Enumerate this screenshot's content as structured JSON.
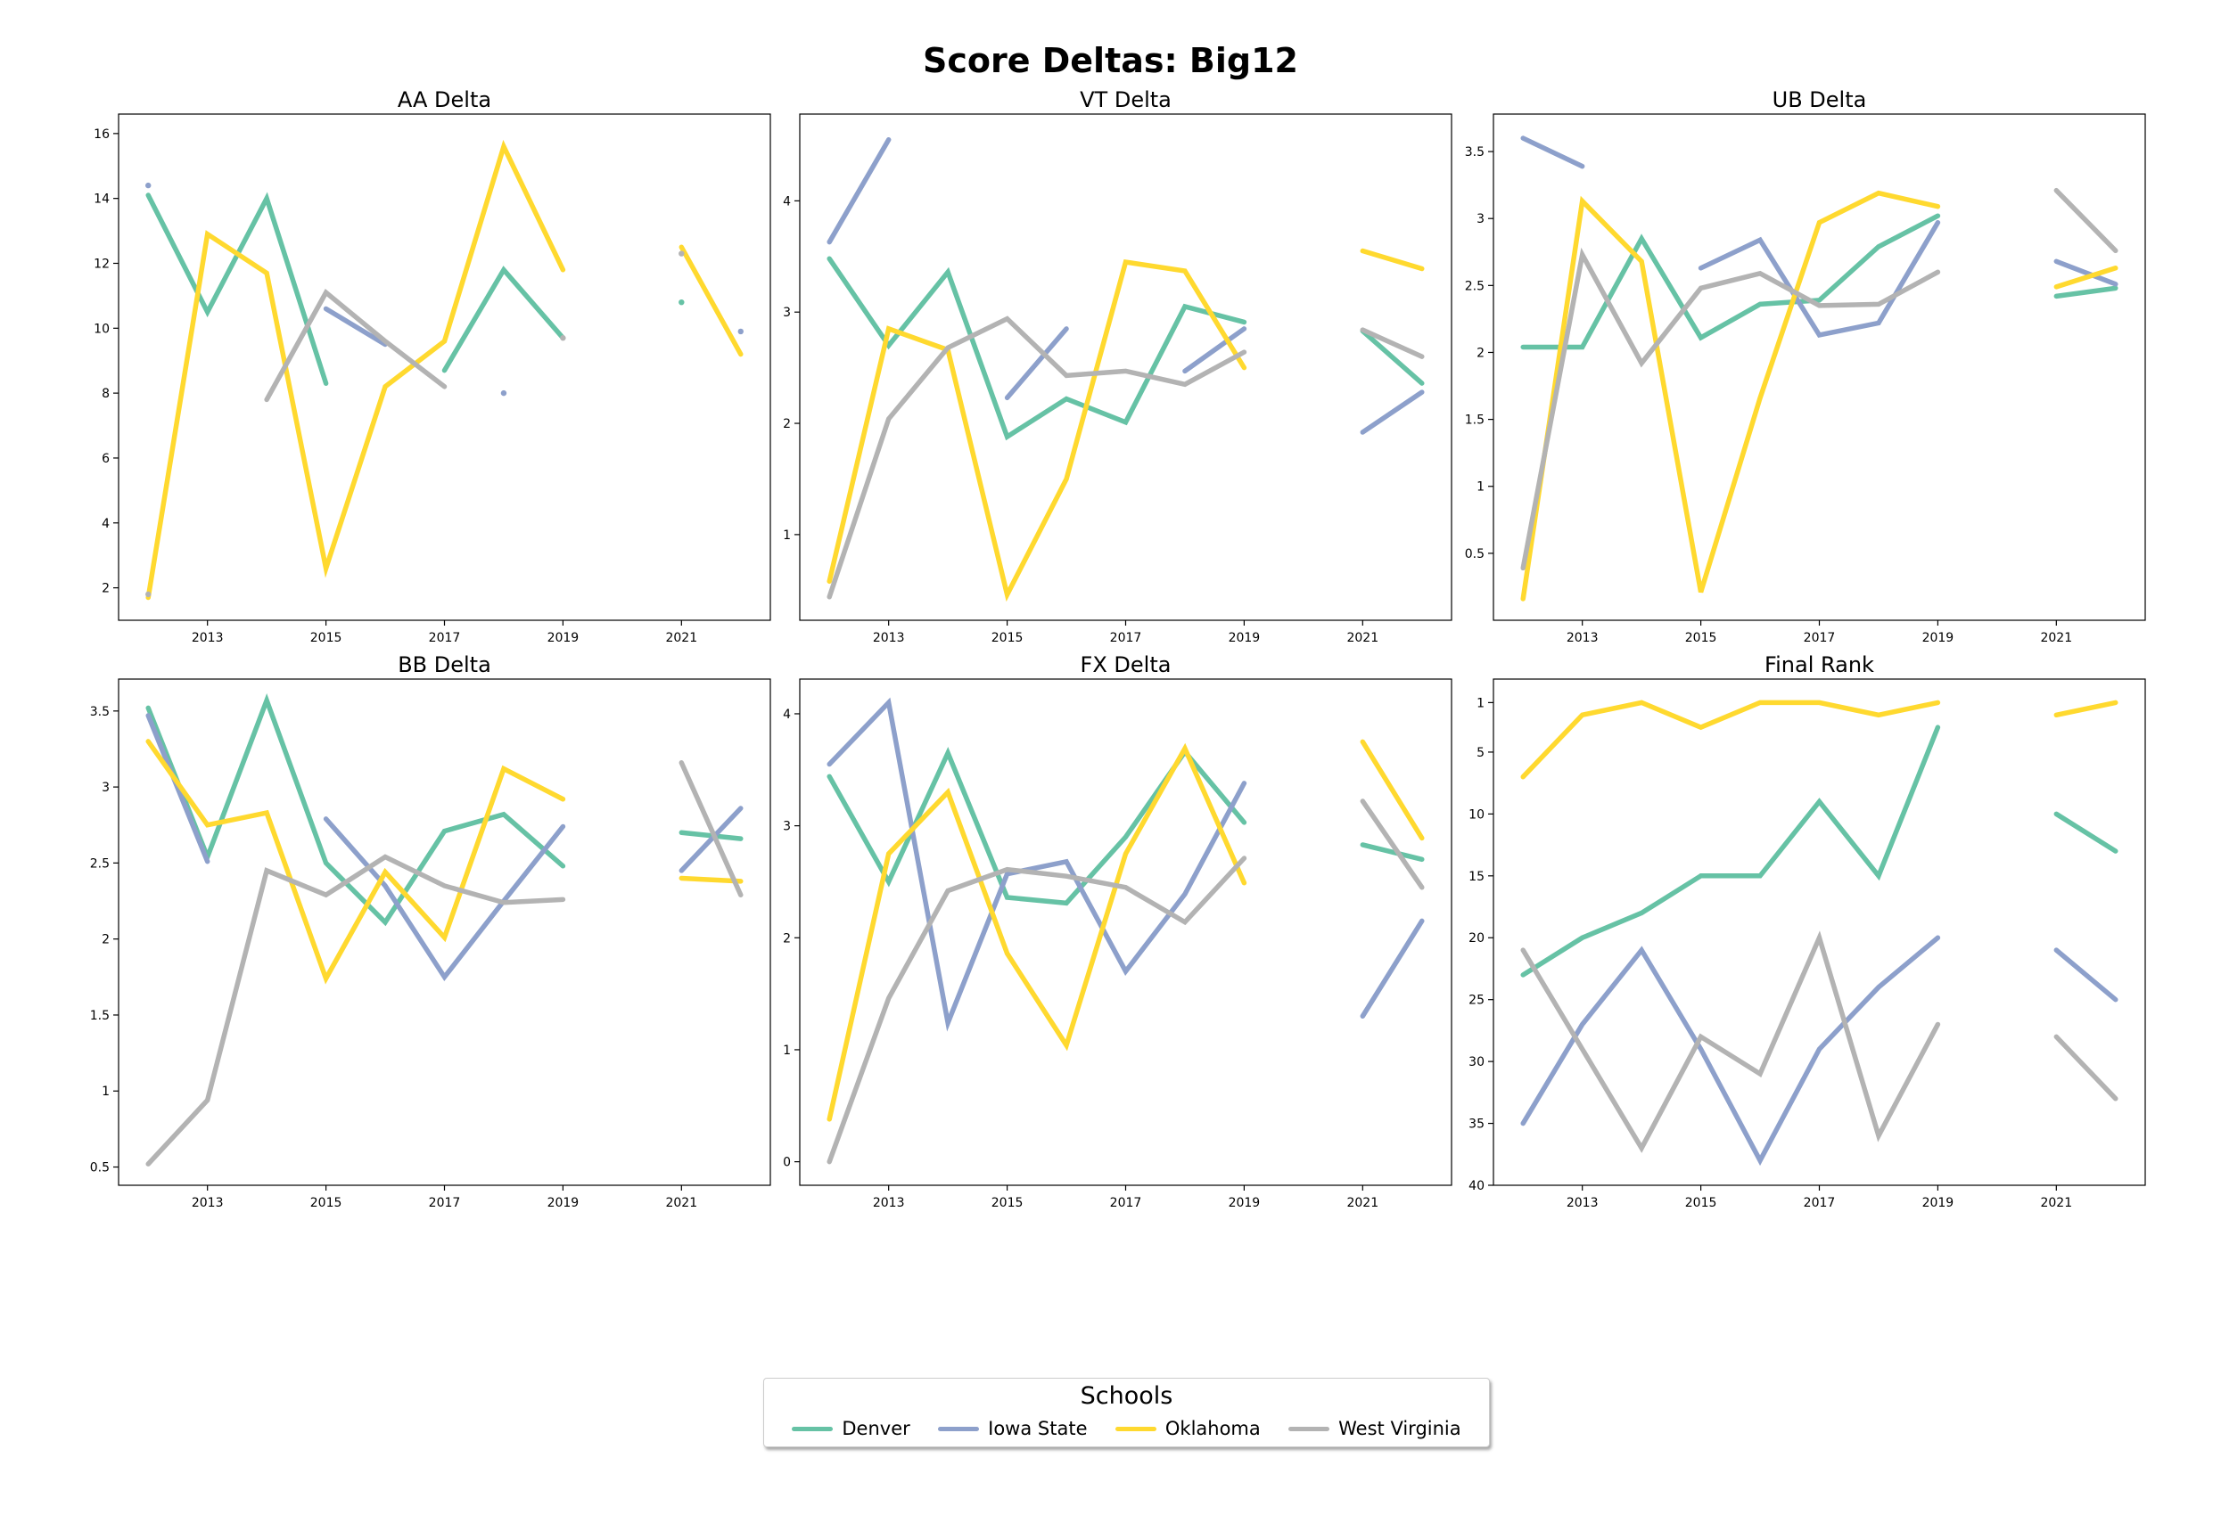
{
  "figure_title": "Score Deltas: Big12",
  "legend": {
    "title": "Schools",
    "entries": [
      {
        "label": "Denver",
        "color": "#66c2a5"
      },
      {
        "label": "Iowa State",
        "color": "#8da0cb"
      },
      {
        "label": "Oklahoma",
        "color": "#ffd92f"
      },
      {
        "label": "West Virginia",
        "color": "#b3b3b3"
      }
    ]
  },
  "chart_data": [
    {
      "type": "line",
      "title": "AA Delta",
      "xlabel": "",
      "ylabel": "",
      "xlim": [
        2011.5,
        2022.5
      ],
      "ylim": [
        1.0,
        16.6
      ],
      "xticks": [
        2013,
        2015,
        2017,
        2019,
        2021
      ],
      "yticks": [
        2,
        4,
        6,
        8,
        10,
        12,
        14,
        16
      ],
      "y_inverted": false,
      "grid": false,
      "series": [
        {
          "name": "Denver",
          "x": [
            2012,
            2013,
            2014,
            2015,
            2016,
            2017,
            2018,
            2019,
            2020,
            2021,
            2022
          ],
          "values": [
            14.1,
            10.5,
            14.0,
            8.3,
            null,
            8.7,
            11.8,
            9.7,
            null,
            10.8,
            null
          ]
        },
        {
          "name": "Iowa State",
          "x": [
            2012,
            2013,
            2014,
            2015,
            2016,
            2017,
            2018,
            2019,
            2020,
            2021,
            2022
          ],
          "values": [
            14.4,
            null,
            null,
            10.6,
            9.5,
            null,
            8.0,
            null,
            null,
            null,
            9.9
          ]
        },
        {
          "name": "Oklahoma",
          "x": [
            2012,
            2013,
            2014,
            2015,
            2016,
            2017,
            2018,
            2019,
            2020,
            2021,
            2022
          ],
          "values": [
            1.7,
            12.9,
            11.7,
            2.6,
            8.2,
            9.6,
            15.6,
            11.8,
            null,
            12.5,
            9.2
          ]
        },
        {
          "name": "West Virginia",
          "x": [
            2012,
            2013,
            2014,
            2015,
            2016,
            2017,
            2018,
            2019,
            2020,
            2021,
            2022
          ],
          "values": [
            1.8,
            null,
            7.8,
            11.1,
            9.6,
            8.2,
            null,
            9.7,
            null,
            12.3,
            null
          ]
        }
      ]
    },
    {
      "type": "line",
      "title": "VT Delta",
      "xlabel": "",
      "ylabel": "",
      "xlim": [
        2011.5,
        2022.5
      ],
      "ylim": [
        0.23,
        4.78
      ],
      "xticks": [
        2013,
        2015,
        2017,
        2019,
        2021
      ],
      "yticks": [
        1,
        2,
        3,
        4
      ],
      "y_inverted": false,
      "grid": false,
      "series": [
        {
          "name": "Denver",
          "x": [
            2012,
            2013,
            2014,
            2015,
            2016,
            2017,
            2018,
            2019,
            2020,
            2021,
            2022
          ],
          "values": [
            3.48,
            2.7,
            3.36,
            1.88,
            2.22,
            2.01,
            3.05,
            2.91,
            null,
            2.83,
            2.36
          ]
        },
        {
          "name": "Iowa State",
          "x": [
            2012,
            2013,
            2014,
            2015,
            2016,
            2017,
            2018,
            2019,
            2020,
            2021,
            2022
          ],
          "values": [
            3.63,
            4.55,
            null,
            2.23,
            2.85,
            null,
            2.47,
            2.85,
            null,
            1.92,
            2.28
          ]
        },
        {
          "name": "Oklahoma",
          "x": [
            2012,
            2013,
            2014,
            2015,
            2016,
            2017,
            2018,
            2019,
            2020,
            2021,
            2022
          ],
          "values": [
            0.58,
            2.85,
            2.66,
            0.46,
            1.5,
            3.45,
            3.37,
            2.5,
            null,
            3.55,
            3.39
          ]
        },
        {
          "name": "West Virginia",
          "x": [
            2012,
            2013,
            2014,
            2015,
            2016,
            2017,
            2018,
            2019,
            2020,
            2021,
            2022
          ],
          "values": [
            0.44,
            2.04,
            2.68,
            2.94,
            2.43,
            2.47,
            2.35,
            2.64,
            null,
            2.84,
            2.6
          ]
        }
      ]
    },
    {
      "type": "line",
      "title": "UB Delta",
      "xlabel": "",
      "ylabel": "",
      "xlim": [
        2011.5,
        2022.5
      ],
      "ylim": [
        0.0,
        3.78
      ],
      "xticks": [
        2013,
        2015,
        2017,
        2019,
        2021
      ],
      "yticks": [
        0.5,
        1.0,
        1.5,
        2.0,
        2.5,
        3.0,
        3.5
      ],
      "y_inverted": false,
      "grid": false,
      "series": [
        {
          "name": "Denver",
          "x": [
            2012,
            2013,
            2014,
            2015,
            2016,
            2017,
            2018,
            2019,
            2020,
            2021,
            2022
          ],
          "values": [
            2.04,
            2.04,
            2.85,
            2.11,
            2.36,
            2.39,
            2.79,
            3.02,
            null,
            2.42,
            2.48
          ]
        },
        {
          "name": "Iowa State",
          "x": [
            2012,
            2013,
            2014,
            2015,
            2016,
            2017,
            2018,
            2019,
            2020,
            2021,
            2022
          ],
          "values": [
            3.6,
            3.39,
            null,
            2.63,
            2.84,
            2.13,
            2.22,
            2.97,
            null,
            2.68,
            2.51
          ]
        },
        {
          "name": "Oklahoma",
          "x": [
            2012,
            2013,
            2014,
            2015,
            2016,
            2017,
            2018,
            2019,
            2020,
            2021,
            2022
          ],
          "values": [
            0.16,
            3.13,
            2.68,
            0.21,
            1.66,
            2.97,
            3.19,
            3.09,
            null,
            2.49,
            2.63
          ]
        },
        {
          "name": "West Virginia",
          "x": [
            2012,
            2013,
            2014,
            2015,
            2016,
            2017,
            2018,
            2019,
            2020,
            2021,
            2022
          ],
          "values": [
            0.39,
            2.73,
            1.92,
            2.48,
            2.59,
            2.35,
            2.36,
            2.6,
            null,
            3.21,
            2.76
          ]
        }
      ]
    },
    {
      "type": "line",
      "title": "BB Delta",
      "xlabel": "",
      "ylabel": "",
      "xlim": [
        2011.5,
        2022.5
      ],
      "ylim": [
        0.38,
        3.71
      ],
      "xticks": [
        2013,
        2015,
        2017,
        2019,
        2021
      ],
      "yticks": [
        0.5,
        1.0,
        1.5,
        2.0,
        2.5,
        3.0,
        3.5
      ],
      "y_inverted": false,
      "grid": false,
      "series": [
        {
          "name": "Denver",
          "x": [
            2012,
            2013,
            2014,
            2015,
            2016,
            2017,
            2018,
            2019,
            2020,
            2021,
            2022
          ],
          "values": [
            3.52,
            2.54,
            3.57,
            2.5,
            2.11,
            2.71,
            2.82,
            2.48,
            null,
            2.7,
            2.66
          ]
        },
        {
          "name": "Iowa State",
          "x": [
            2012,
            2013,
            2014,
            2015,
            2016,
            2017,
            2018,
            2019,
            2020,
            2021,
            2022
          ],
          "values": [
            3.47,
            2.51,
            null,
            2.79,
            2.35,
            1.75,
            2.25,
            2.74,
            null,
            2.45,
            2.86
          ]
        },
        {
          "name": "Oklahoma",
          "x": [
            2012,
            2013,
            2014,
            2015,
            2016,
            2017,
            2018,
            2019,
            2020,
            2021,
            2022
          ],
          "values": [
            3.3,
            2.75,
            2.83,
            1.74,
            2.44,
            2.01,
            3.12,
            2.92,
            null,
            2.4,
            2.38
          ]
        },
        {
          "name": "West Virginia",
          "x": [
            2012,
            2013,
            2014,
            2015,
            2016,
            2017,
            2018,
            2019,
            2020,
            2021,
            2022
          ],
          "values": [
            0.52,
            0.94,
            2.45,
            2.29,
            2.54,
            2.35,
            2.24,
            2.26,
            null,
            3.16,
            2.29
          ]
        }
      ]
    },
    {
      "type": "line",
      "title": "FX Delta",
      "xlabel": "",
      "ylabel": "",
      "xlim": [
        2011.5,
        2022.5
      ],
      "ylim": [
        -0.21,
        4.31
      ],
      "xticks": [
        2013,
        2015,
        2017,
        2019,
        2021
      ],
      "yticks": [
        0,
        1,
        2,
        3,
        4
      ],
      "y_inverted": false,
      "grid": false,
      "series": [
        {
          "name": "Denver",
          "x": [
            2012,
            2013,
            2014,
            2015,
            2016,
            2017,
            2018,
            2019,
            2020,
            2021,
            2022
          ],
          "values": [
            3.44,
            2.5,
            3.65,
            2.36,
            2.31,
            2.9,
            3.66,
            3.03,
            null,
            2.83,
            2.7
          ]
        },
        {
          "name": "Iowa State",
          "x": [
            2012,
            2013,
            2014,
            2015,
            2016,
            2017,
            2018,
            2019,
            2020,
            2021,
            2022
          ],
          "values": [
            3.55,
            4.1,
            1.24,
            2.57,
            2.68,
            1.7,
            2.39,
            3.38,
            null,
            1.3,
            2.15
          ]
        },
        {
          "name": "Oklahoma",
          "x": [
            2012,
            2013,
            2014,
            2015,
            2016,
            2017,
            2018,
            2019,
            2020,
            2021,
            2022
          ],
          "values": [
            0.38,
            2.75,
            3.3,
            1.86,
            1.04,
            2.75,
            3.69,
            2.49,
            null,
            3.75,
            2.89
          ]
        },
        {
          "name": "West Virginia",
          "x": [
            2012,
            2013,
            2014,
            2015,
            2016,
            2017,
            2018,
            2019,
            2020,
            2021,
            2022
          ],
          "values": [
            0.0,
            1.46,
            2.42,
            2.61,
            2.55,
            2.45,
            2.14,
            2.71,
            null,
            3.22,
            2.45
          ]
        }
      ]
    },
    {
      "type": "line",
      "title": "Final Rank",
      "xlabel": "",
      "ylabel": "",
      "xlim": [
        2011.5,
        2022.5
      ],
      "ylim": [
        40,
        -0.9
      ],
      "xticks": [
        2013,
        2015,
        2017,
        2019,
        2021
      ],
      "yticks": [
        1,
        5,
        10,
        15,
        20,
        25,
        30,
        35,
        40
      ],
      "y_inverted": true,
      "grid": false,
      "series": [
        {
          "name": "Denver",
          "x": [
            2012,
            2013,
            2014,
            2015,
            2016,
            2017,
            2018,
            2019,
            2020,
            2021,
            2022
          ],
          "values": [
            23,
            20,
            18,
            15,
            15,
            9,
            15,
            3,
            null,
            10,
            13
          ]
        },
        {
          "name": "Iowa State",
          "x": [
            2012,
            2013,
            2014,
            2015,
            2016,
            2017,
            2018,
            2019,
            2020,
            2021,
            2022
          ],
          "values": [
            35,
            27,
            21,
            29,
            38,
            29,
            24,
            20,
            null,
            21,
            25
          ]
        },
        {
          "name": "Oklahoma",
          "x": [
            2012,
            2013,
            2014,
            2015,
            2016,
            2017,
            2018,
            2019,
            2020,
            2021,
            2022
          ],
          "values": [
            7,
            2,
            1,
            3,
            1,
            1,
            2,
            1,
            null,
            2,
            1
          ]
        },
        {
          "name": "West Virginia",
          "x": [
            2012,
            2013,
            2014,
            2015,
            2016,
            2017,
            2018,
            2019,
            2020,
            2021,
            2022
          ],
          "values": [
            21,
            29,
            37,
            28,
            31,
            20,
            36,
            27,
            null,
            28,
            33
          ]
        }
      ]
    }
  ]
}
